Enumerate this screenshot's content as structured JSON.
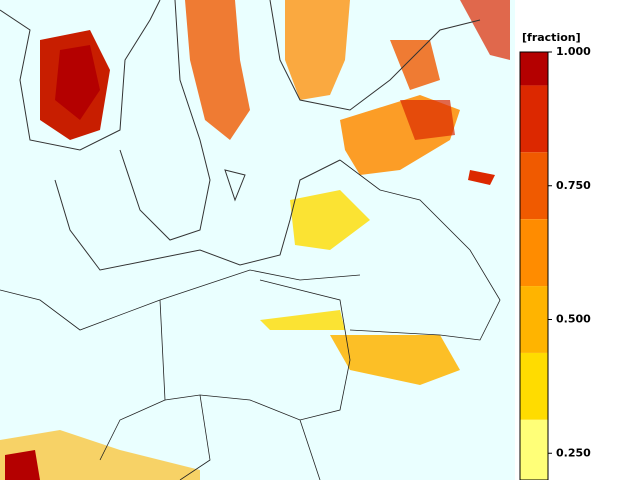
{
  "chart_data": {
    "type": "colorbar",
    "title": "[fraction]",
    "ylim": [
      0.2,
      1.0
    ],
    "yticks": [
      {
        "value": 1,
        "label": "1.000"
      },
      {
        "value": 0.75,
        "label": "0.750"
      },
      {
        "value": 0.5,
        "label": "0.500"
      },
      {
        "value": 0.25,
        "label": "0.250"
      }
    ],
    "bounds": [
      1.0,
      0.9375,
      0.8125,
      0.6875,
      0.5625,
      0.4375,
      0.3125,
      0.2
    ],
    "colors": [
      "#b40000",
      "#dc2800",
      "#f05a00",
      "#ff8c00",
      "#ffb400",
      "#ffdc00",
      "#ffff78"
    ]
  }
}
